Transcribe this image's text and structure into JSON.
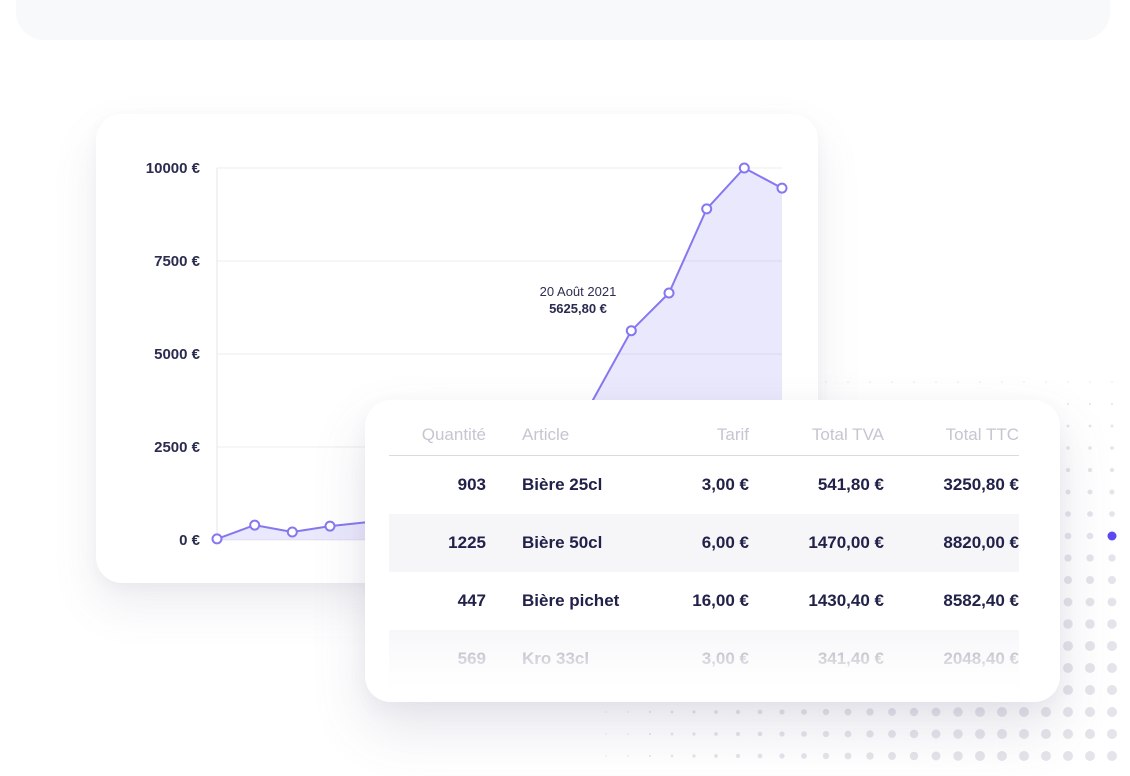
{
  "background": {
    "top_strip_color": "#f8f9fa",
    "dot_color": "#e4e4ea",
    "accent_dot_color": "#5c49ef"
  },
  "chart_card": {
    "tooltip": {
      "date": "20 Août 2021",
      "value": "5625,80 €"
    }
  },
  "chart_data": {
    "type": "area",
    "title": "",
    "xlabel": "",
    "ylabel": "",
    "ylim": [
      0,
      10000
    ],
    "yticks": [
      0,
      2500,
      5000,
      7500,
      10000
    ],
    "ytick_labels": [
      "0 €",
      "2500 €",
      "5000 €",
      "7500 €",
      "10000 €"
    ],
    "grid": true,
    "values": [
      30,
      400,
      215,
      375,
      480,
      560,
      640,
      800,
      1150,
      2000,
      3800,
      5625.8,
      6640,
      8900,
      10000,
      9460
    ],
    "visible_marker_indices": [
      0,
      1,
      2,
      3,
      11,
      12,
      13,
      14,
      15
    ],
    "highlight_index": 11,
    "highlight_date": "20 Août 2021",
    "highlight_value_label": "5625,80 €",
    "line_color": "#8577ef",
    "fill_color": "rgba(133,119,239,0.17)",
    "grid_color": "#ececf1",
    "axis_color": "#e4e4eb",
    "tick_label_color": "#2b2b4f",
    "marker_fill": "#ffffff"
  },
  "table": {
    "columns": [
      {
        "label": "Quantité",
        "align": "right"
      },
      {
        "label": "Article",
        "align": "left"
      },
      {
        "label": "Tarif",
        "align": "right"
      },
      {
        "label": "Total TVA",
        "align": "right"
      },
      {
        "label": "Total TTC",
        "align": "right"
      }
    ],
    "rows": [
      [
        "903",
        "Bière 25cl",
        "3,00 €",
        "541,80 €",
        "3250,80 €"
      ],
      [
        "1225",
        "Bière 50cl",
        "6,00 €",
        "1470,00 €",
        "8820,00 €"
      ],
      [
        "447",
        "Bière pichet",
        "16,00 €",
        "1430,40 €",
        "8582,40 €"
      ],
      [
        "569",
        "Kro 33cl",
        "3,00 €",
        "341,40 €",
        "2048,40 €"
      ]
    ],
    "striped_row_indices": [
      1,
      3
    ],
    "faded_row_index": 3
  }
}
